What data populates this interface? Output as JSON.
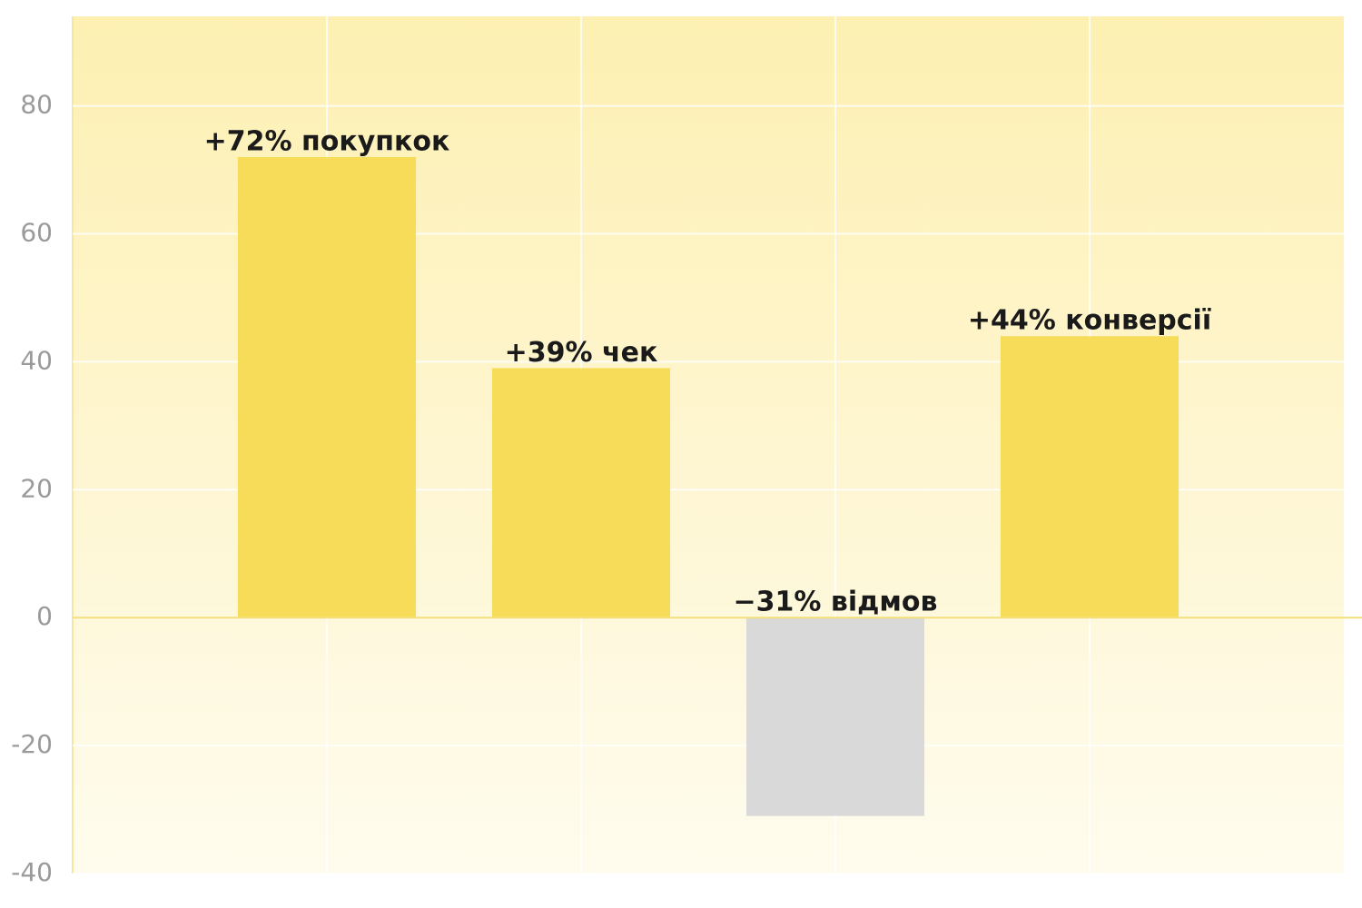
{
  "chart_data": {
    "type": "bar",
    "x": [
      1,
      2,
      3,
      4
    ],
    "xlim": [
      0,
      5
    ],
    "values": [
      72,
      39,
      -31,
      44
    ],
    "value_labels": [
      "+72% покупкок",
      "+39% чек",
      "−31% відмов",
      "+44% конверсії"
    ],
    "colors": [
      "#f7dc5a",
      "#f7dc5a",
      "#d9d9d9",
      "#f7dc5a"
    ],
    "ylim": [
      -40,
      94
    ],
    "yticks": [
      -40,
      -20,
      0,
      20,
      40,
      60,
      80
    ],
    "grid": true
  }
}
